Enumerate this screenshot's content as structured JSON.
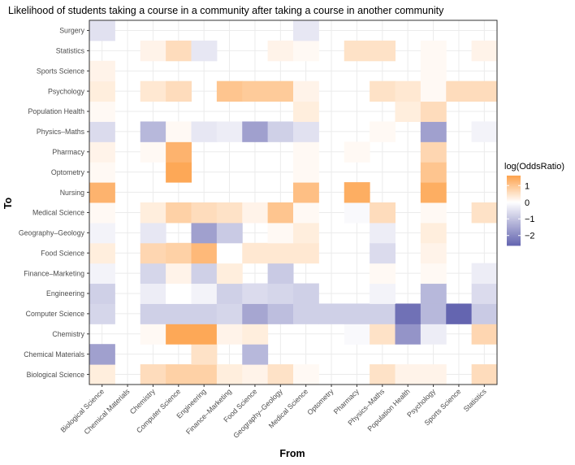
{
  "chart_data": {
    "type": "heatmap",
    "title": "Likelihood of students taking a course in a community after taking a course in another community",
    "xlabel": "From",
    "ylabel": "To",
    "x": [
      "Biological Science",
      "Chemical Materials",
      "Chemistry",
      "Computer Science",
      "Engineering",
      "Finance–Marketing",
      "Food Science",
      "Geography–Geology",
      "Medical Science",
      "Optometry",
      "Pharmacy",
      "Physics–Maths",
      "Population Health",
      "Psychology",
      "Sports Science",
      "Statistics"
    ],
    "y": [
      "Biological Science",
      "Chemical Materials",
      "Chemistry",
      "Computer Science",
      "Engineering",
      "Finance–Marketing",
      "Food Science",
      "Geography–Geology",
      "Medical Science",
      "Nursing",
      "Optometry",
      "Pharmacy",
      "Physics–Maths",
      "Population Health",
      "Psychology",
      "Sports Science",
      "Statistics",
      "Surgery"
    ],
    "values": [
      [
        0.3,
        null,
        0.6,
        0.8,
        0.8,
        0.3,
        0.2,
        0.5,
        0.1,
        null,
        null,
        0.5,
        0.2,
        0.2,
        null,
        0.6
      ],
      [
        -1.6,
        null,
        null,
        null,
        0.5,
        null,
        -1.2,
        null,
        null,
        null,
        null,
        null,
        null,
        null,
        null,
        null
      ],
      [
        null,
        null,
        0.1,
        1.5,
        1.5,
        0.2,
        0.3,
        null,
        null,
        null,
        -0.1,
        0.5,
        -1.8,
        -0.3,
        null,
        0.7
      ],
      [
        -0.7,
        null,
        -0.8,
        -0.8,
        -0.8,
        -0.7,
        -1.5,
        -1.1,
        -0.8,
        -0.8,
        -0.8,
        -0.8,
        -2.4,
        -1.2,
        -2.6,
        -0.9
      ],
      [
        -0.8,
        null,
        -0.3,
        0.0,
        -0.2,
        -0.8,
        -0.6,
        -0.7,
        -0.8,
        null,
        null,
        -0.2,
        null,
        -1.2,
        null,
        -0.6
      ],
      [
        -0.2,
        null,
        -0.7,
        0.2,
        -0.8,
        0.3,
        null,
        -0.9,
        null,
        null,
        null,
        0.1,
        null,
        0.1,
        null,
        -0.3
      ],
      [
        0.3,
        null,
        0.7,
        0.8,
        1.2,
        0.0,
        0.4,
        0.4,
        0.4,
        null,
        null,
        -0.6,
        null,
        0.2,
        null,
        null
      ],
      [
        -0.2,
        null,
        -0.4,
        null,
        -1.6,
        -0.9,
        null,
        0.1,
        0.3,
        null,
        null,
        -0.3,
        null,
        0.3,
        null,
        null
      ],
      [
        0.1,
        null,
        0.3,
        0.8,
        0.6,
        0.5,
        0.2,
        1.0,
        0.1,
        null,
        -0.1,
        0.6,
        null,
        0.1,
        null,
        0.5
      ],
      [
        1.3,
        null,
        null,
        null,
        null,
        null,
        null,
        null,
        1.1,
        null,
        1.4,
        null,
        null,
        1.4,
        null,
        null
      ],
      [
        0.1,
        null,
        null,
        1.5,
        null,
        null,
        null,
        null,
        0.1,
        null,
        null,
        null,
        null,
        1.0,
        null,
        null
      ],
      [
        0.2,
        null,
        0.1,
        1.3,
        null,
        null,
        null,
        null,
        0.1,
        null,
        0.1,
        null,
        null,
        0.7,
        null,
        null
      ],
      [
        -0.6,
        null,
        -1.2,
        0.1,
        -0.4,
        -0.3,
        -1.6,
        -0.8,
        -0.5,
        null,
        null,
        0.1,
        null,
        -1.6,
        null,
        -0.2
      ],
      [
        0.1,
        null,
        null,
        null,
        null,
        null,
        null,
        null,
        0.3,
        null,
        null,
        null,
        0.3,
        0.6,
        null,
        null
      ],
      [
        0.3,
        null,
        0.4,
        0.6,
        null,
        1.0,
        0.9,
        0.9,
        0.2,
        null,
        null,
        0.5,
        0.4,
        0.1,
        0.6,
        0.6
      ],
      [
        0.2,
        null,
        null,
        null,
        null,
        null,
        null,
        null,
        null,
        null,
        null,
        null,
        null,
        0.1,
        null,
        null
      ],
      [
        null,
        null,
        0.2,
        0.6,
        -0.4,
        null,
        null,
        0.2,
        0.1,
        null,
        0.5,
        0.5,
        null,
        0.1,
        null,
        0.2
      ],
      [
        -0.5,
        null,
        null,
        null,
        null,
        null,
        null,
        null,
        -0.4,
        null,
        null,
        null,
        null,
        null,
        null,
        null
      ]
    ],
    "legend": {
      "title": "log(OddsRatio)",
      "ticks": [
        1,
        0,
        -1,
        -2
      ],
      "tick_labels": [
        "1",
        "0",
        "−1",
        "−2"
      ],
      "range": [
        -2.6,
        1.6
      ],
      "low_color": "#6465b0",
      "mid_color": "#ffffff",
      "high_color": "#fda24c",
      "position": "right"
    },
    "grid": true
  }
}
